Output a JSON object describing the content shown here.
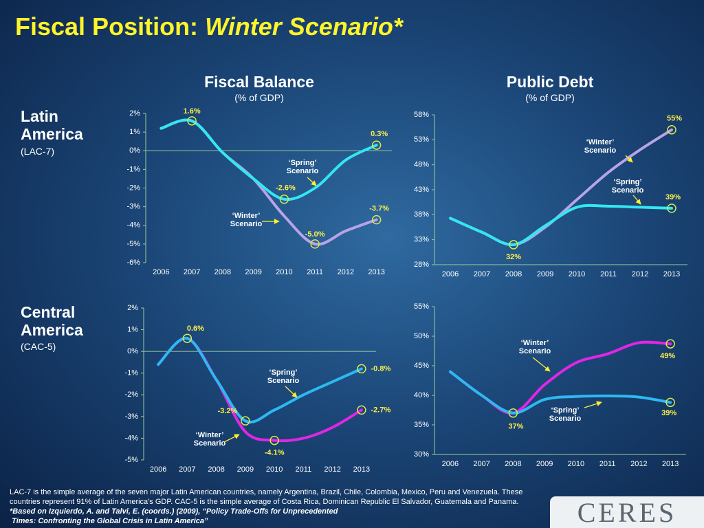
{
  "title": "Fiscal Position:",
  "title_emphasis": "Winter Scenario*",
  "columns": [
    {
      "title": "Fiscal Balance",
      "subtitle": "(% of GDP)"
    },
    {
      "title": "Public Debt",
      "subtitle": "(% of GDP)"
    }
  ],
  "rows": [
    {
      "title": "Latin America",
      "subtitle": "(LAC-7)"
    },
    {
      "title": "Central America",
      "subtitle": "(CAC-5)"
    }
  ],
  "chart_data": [
    {
      "type": "line",
      "categories": [
        "2006",
        "2007",
        "2008",
        "2009",
        "2010",
        "2011",
        "2012",
        "2013"
      ],
      "ylim": [
        -6,
        2
      ],
      "yticks": [
        {
          "value": 2,
          "label": "2%"
        },
        {
          "value": 1,
          "label": "1%"
        },
        {
          "value": 0,
          "label": "0%"
        },
        {
          "value": -1,
          "label": "-1%"
        },
        {
          "value": -2,
          "label": "-2%"
        },
        {
          "value": -3,
          "label": "-3%"
        },
        {
          "value": -4,
          "label": "-4%"
        },
        {
          "value": -5,
          "label": "-5%"
        },
        {
          "value": -6,
          "label": "-6%"
        }
      ],
      "series": [
        {
          "color": "#b7a3e8",
          "values": [
            1.2,
            1.6,
            -0.1,
            -1.5,
            -3.5,
            -5.0,
            -4.3,
            -3.7
          ],
          "value_labels": [
            null,
            "1.6%",
            null,
            null,
            null,
            "-5.0%",
            null,
            "-3.7%"
          ]
        },
        {
          "color": "#33e6f2",
          "values": [
            1.2,
            1.6,
            -0.1,
            -1.5,
            -2.6,
            -2.0,
            -0.5,
            0.3
          ],
          "value_labels": [
            null,
            null,
            null,
            null,
            "-2.6%",
            null,
            null,
            "0.3%"
          ]
        }
      ],
      "annotations": [
        {
          "lines": [
            "‘Winter’",
            "Scenario"
          ]
        },
        {
          "lines": [
            "‘Spring’",
            "Scenario"
          ]
        }
      ]
    },
    {
      "type": "line",
      "categories": [
        "2006",
        "2007",
        "2008",
        "2009",
        "2010",
        "2011",
        "2012",
        "2013"
      ],
      "ylim": [
        28,
        58
      ],
      "yticks": [
        {
          "value": 58,
          "label": "58%"
        },
        {
          "value": 53,
          "label": "53%"
        },
        {
          "value": 48,
          "label": "48%"
        },
        {
          "value": 43,
          "label": "43%"
        },
        {
          "value": 38,
          "label": "38%"
        },
        {
          "value": 33,
          "label": "33%"
        },
        {
          "value": 28,
          "label": "28%"
        }
      ],
      "series": [
        {
          "color": "#b7a3e8",
          "values": [
            37.3,
            34.5,
            32,
            35.5,
            41,
            46.5,
            51,
            55
          ],
          "value_labels": [
            null,
            null,
            "32%",
            null,
            null,
            null,
            null,
            "55%"
          ]
        },
        {
          "color": "#33e6f2",
          "values": [
            37.3,
            34.5,
            32,
            35.8,
            39.5,
            39.7,
            39.5,
            39.3
          ],
          "value_labels": [
            null,
            null,
            null,
            null,
            null,
            null,
            null,
            "39%"
          ]
        }
      ],
      "annotations": [
        {
          "lines": [
            "‘Winter’",
            "Scenario"
          ]
        },
        {
          "lines": [
            "‘Spring’",
            "Scenario"
          ]
        }
      ]
    },
    {
      "type": "line",
      "categories": [
        "2006",
        "2007",
        "2008",
        "2009",
        "2010",
        "2011",
        "2012",
        "2013"
      ],
      "ylim": [
        -5,
        2
      ],
      "yticks": [
        {
          "value": 2,
          "label": "2%"
        },
        {
          "value": 1,
          "label": "1%"
        },
        {
          "value": 0,
          "label": "0%"
        },
        {
          "value": -1,
          "label": "-1%"
        },
        {
          "value": -2,
          "label": "-2%"
        },
        {
          "value": -3,
          "label": "-3%"
        },
        {
          "value": -4,
          "label": "-4%"
        },
        {
          "value": -5,
          "label": "-5%"
        }
      ],
      "series": [
        {
          "color": "#e026e6",
          "values": [
            -0.6,
            0.6,
            -1.3,
            -3.7,
            -4.1,
            -4.0,
            -3.5,
            -2.7
          ],
          "value_labels": [
            null,
            "0.6%",
            null,
            null,
            "-4.1%",
            null,
            null,
            "-2.7%"
          ]
        },
        {
          "color": "#2eb8f2",
          "values": [
            -0.6,
            0.6,
            -1.3,
            -3.2,
            -2.7,
            -2.0,
            -1.4,
            -0.8
          ],
          "value_labels": [
            null,
            null,
            null,
            "-3.2%",
            null,
            null,
            null,
            "-0.8%"
          ]
        }
      ],
      "annotations": [
        {
          "lines": [
            "‘Winter’",
            "Scenario"
          ]
        },
        {
          "lines": [
            "‘Spring’",
            "Scenario"
          ]
        }
      ]
    },
    {
      "type": "line",
      "categories": [
        "2006",
        "2007",
        "2008",
        "2009",
        "2010",
        "2011",
        "2012",
        "2013"
      ],
      "ylim": [
        30,
        55
      ],
      "yticks": [
        {
          "value": 55,
          "label": "55%"
        },
        {
          "value": 50,
          "label": "50%"
        },
        {
          "value": 45,
          "label": "45%"
        },
        {
          "value": 40,
          "label": "40%"
        },
        {
          "value": 35,
          "label": "35%"
        },
        {
          "value": 30,
          "label": "30%"
        }
      ],
      "series": [
        {
          "color": "#e026e6",
          "values": [
            44,
            40,
            37,
            41.8,
            45.5,
            47,
            48.9,
            48.7
          ],
          "value_labels": [
            null,
            null,
            "37%",
            null,
            null,
            null,
            null,
            "49%"
          ]
        },
        {
          "color": "#2eb8f2",
          "values": [
            44,
            40,
            37,
            39.3,
            39.8,
            39.9,
            39.7,
            38.8
          ],
          "value_labels": [
            null,
            null,
            null,
            null,
            null,
            null,
            null,
            "39%"
          ]
        }
      ],
      "annotations": [
        {
          "lines": [
            "‘Winter’",
            "Scenario"
          ]
        },
        {
          "lines": [
            "‘Spring’",
            "Scenario"
          ]
        }
      ]
    }
  ],
  "footnote": [
    "LAC-7 is the simple average of the seven major Latin American countries, namely Argentina, Brazil, Chile, Colombia, Mexico, Peru and Venezuela. These countries represent 91% of Latin America's GDP. CAC-5 is the simple average of Costa Rica, Dominican Republic El Salvador, Guatemala and Panama.",
    "*Based on Izquierdo, A. and Talvi, E. (coords.) (2009), “Policy Trade-Offs for Unprecedented",
    " Times: Confronting the Global Crisis in Latin America”"
  ],
  "logo": "CERES"
}
